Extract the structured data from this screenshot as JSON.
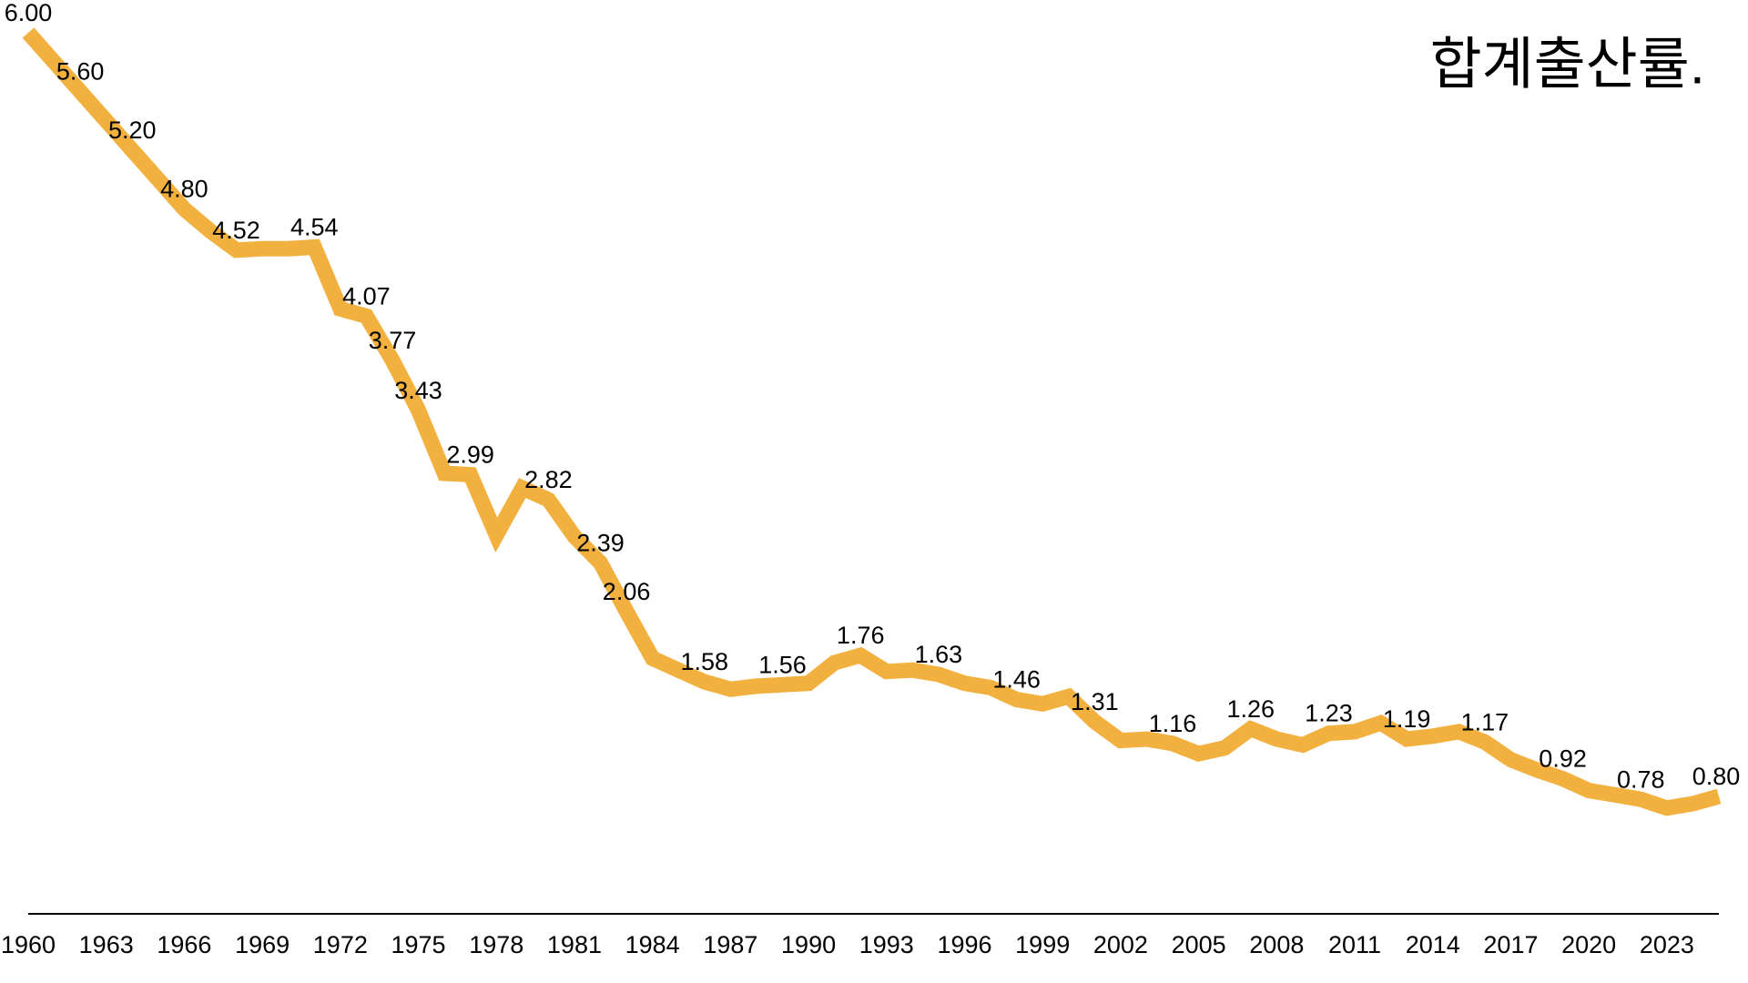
{
  "chart_data": {
    "type": "line",
    "title": "합계출산률.",
    "xlabel": "",
    "ylabel": "",
    "grid": false,
    "legend": "none",
    "line_color": "#F2B13F",
    "xlim": [
      1960,
      2025
    ],
    "ylim": [
      0,
      6
    ],
    "x_ticks": [
      1960,
      1963,
      1966,
      1969,
      1972,
      1975,
      1978,
      1981,
      1984,
      1987,
      1990,
      1993,
      1996,
      1999,
      2002,
      2005,
      2008,
      2011,
      2014,
      2017,
      2020,
      2023
    ],
    "x": [
      1960,
      1961,
      1962,
      1963,
      1964,
      1965,
      1966,
      1967,
      1968,
      1969,
      1970,
      1971,
      1972,
      1973,
      1974,
      1975,
      1976,
      1977,
      1978,
      1979,
      1980,
      1981,
      1982,
      1983,
      1984,
      1985,
      1986,
      1987,
      1988,
      1989,
      1990,
      1991,
      1992,
      1993,
      1994,
      1995,
      1996,
      1997,
      1998,
      1999,
      2000,
      2001,
      2002,
      2003,
      2004,
      2005,
      2006,
      2007,
      2008,
      2009,
      2010,
      2011,
      2012,
      2013,
      2014,
      2015,
      2016,
      2017,
      2018,
      2019,
      2020,
      2021,
      2022,
      2023,
      2024,
      2025
    ],
    "values": [
      6.0,
      5.8,
      5.6,
      5.4,
      5.2,
      5.0,
      4.8,
      4.65,
      4.52,
      4.53,
      4.53,
      4.54,
      4.12,
      4.07,
      3.77,
      3.43,
      3.0,
      2.99,
      2.58,
      2.9,
      2.82,
      2.57,
      2.39,
      2.06,
      1.74,
      1.66,
      1.58,
      1.53,
      1.55,
      1.56,
      1.57,
      1.71,
      1.76,
      1.65,
      1.66,
      1.63,
      1.57,
      1.54,
      1.46,
      1.43,
      1.48,
      1.31,
      1.18,
      1.19,
      1.16,
      1.09,
      1.13,
      1.26,
      1.19,
      1.15,
      1.23,
      1.24,
      1.3,
      1.19,
      1.21,
      1.24,
      1.17,
      1.05,
      0.98,
      0.92,
      0.84,
      0.81,
      0.78,
      0.72,
      0.75,
      0.8
    ],
    "data_labels": [
      {
        "x": 1960,
        "text": "6.00"
      },
      {
        "x": 1962,
        "text": "5.60"
      },
      {
        "x": 1964,
        "text": "5.20"
      },
      {
        "x": 1966,
        "text": "4.80"
      },
      {
        "x": 1968,
        "text": "4.52"
      },
      {
        "x": 1971,
        "text": "4.54"
      },
      {
        "x": 1973,
        "text": "4.07"
      },
      {
        "x": 1974,
        "text": "3.77"
      },
      {
        "x": 1975,
        "text": "3.43"
      },
      {
        "x": 1977,
        "text": "2.99"
      },
      {
        "x": 1980,
        "text": "2.82"
      },
      {
        "x": 1982,
        "text": "2.39"
      },
      {
        "x": 1983,
        "text": "2.06"
      },
      {
        "x": 1986,
        "text": "1.58"
      },
      {
        "x": 1989,
        "text": "1.56"
      },
      {
        "x": 1992,
        "text": "1.76"
      },
      {
        "x": 1995,
        "text": "1.63"
      },
      {
        "x": 1998,
        "text": "1.46"
      },
      {
        "x": 2001,
        "text": "1.31"
      },
      {
        "x": 2004,
        "text": "1.16"
      },
      {
        "x": 2007,
        "text": "1.26"
      },
      {
        "x": 2010,
        "text": "1.23"
      },
      {
        "x": 2013,
        "text": "1.19"
      },
      {
        "x": 2016,
        "text": "1.17"
      },
      {
        "x": 2019,
        "text": "0.92"
      },
      {
        "x": 2022,
        "text": "0.78"
      },
      {
        "x": 2025,
        "text": "0.80"
      }
    ]
  }
}
